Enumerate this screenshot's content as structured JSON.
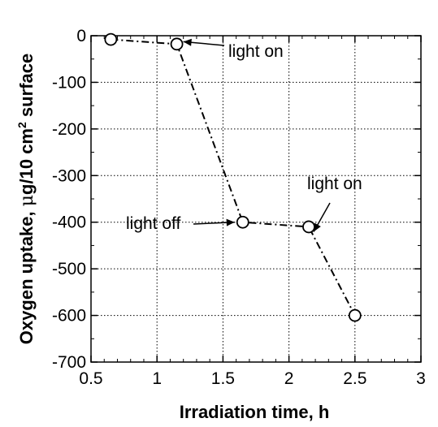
{
  "chart_data": {
    "type": "line",
    "title": "",
    "xlabel": "Irradiation time, h",
    "ylabel_parts": {
      "pre": "Oxygen uptake, ",
      "mu": "μ",
      "post": "g/10 cm",
      "sup": "2",
      "suffix": " surface"
    },
    "xlim": [
      0.5,
      3
    ],
    "ylim": [
      -700,
      0
    ],
    "xticks": [
      0.5,
      1,
      1.5,
      2,
      2.5,
      3
    ],
    "xtick_labels": [
      "0.5",
      "1",
      "1.5",
      "2",
      "2.5",
      "3"
    ],
    "yticks": [
      0,
      -100,
      -200,
      -300,
      -400,
      -500,
      -600,
      -700
    ],
    "ytick_labels": [
      "0",
      "-100",
      "-200",
      "-300",
      "-400",
      "-500",
      "-600",
      "-700"
    ],
    "grid": true,
    "series": [
      {
        "x": [
          0.65,
          1.15,
          1.65,
          2.15,
          2.5
        ],
        "y": [
          -8,
          -18,
          -400,
          -410,
          -600
        ],
        "marker": "open-circle",
        "line_style": "dash-dot",
        "color": "#000000"
      }
    ],
    "annotations": [
      {
        "text": "light on",
        "point": [
          1.15,
          -18
        ]
      },
      {
        "text": "light off",
        "point": [
          1.65,
          -400
        ]
      },
      {
        "text": "light on",
        "point": [
          2.15,
          -410
        ]
      }
    ]
  }
}
